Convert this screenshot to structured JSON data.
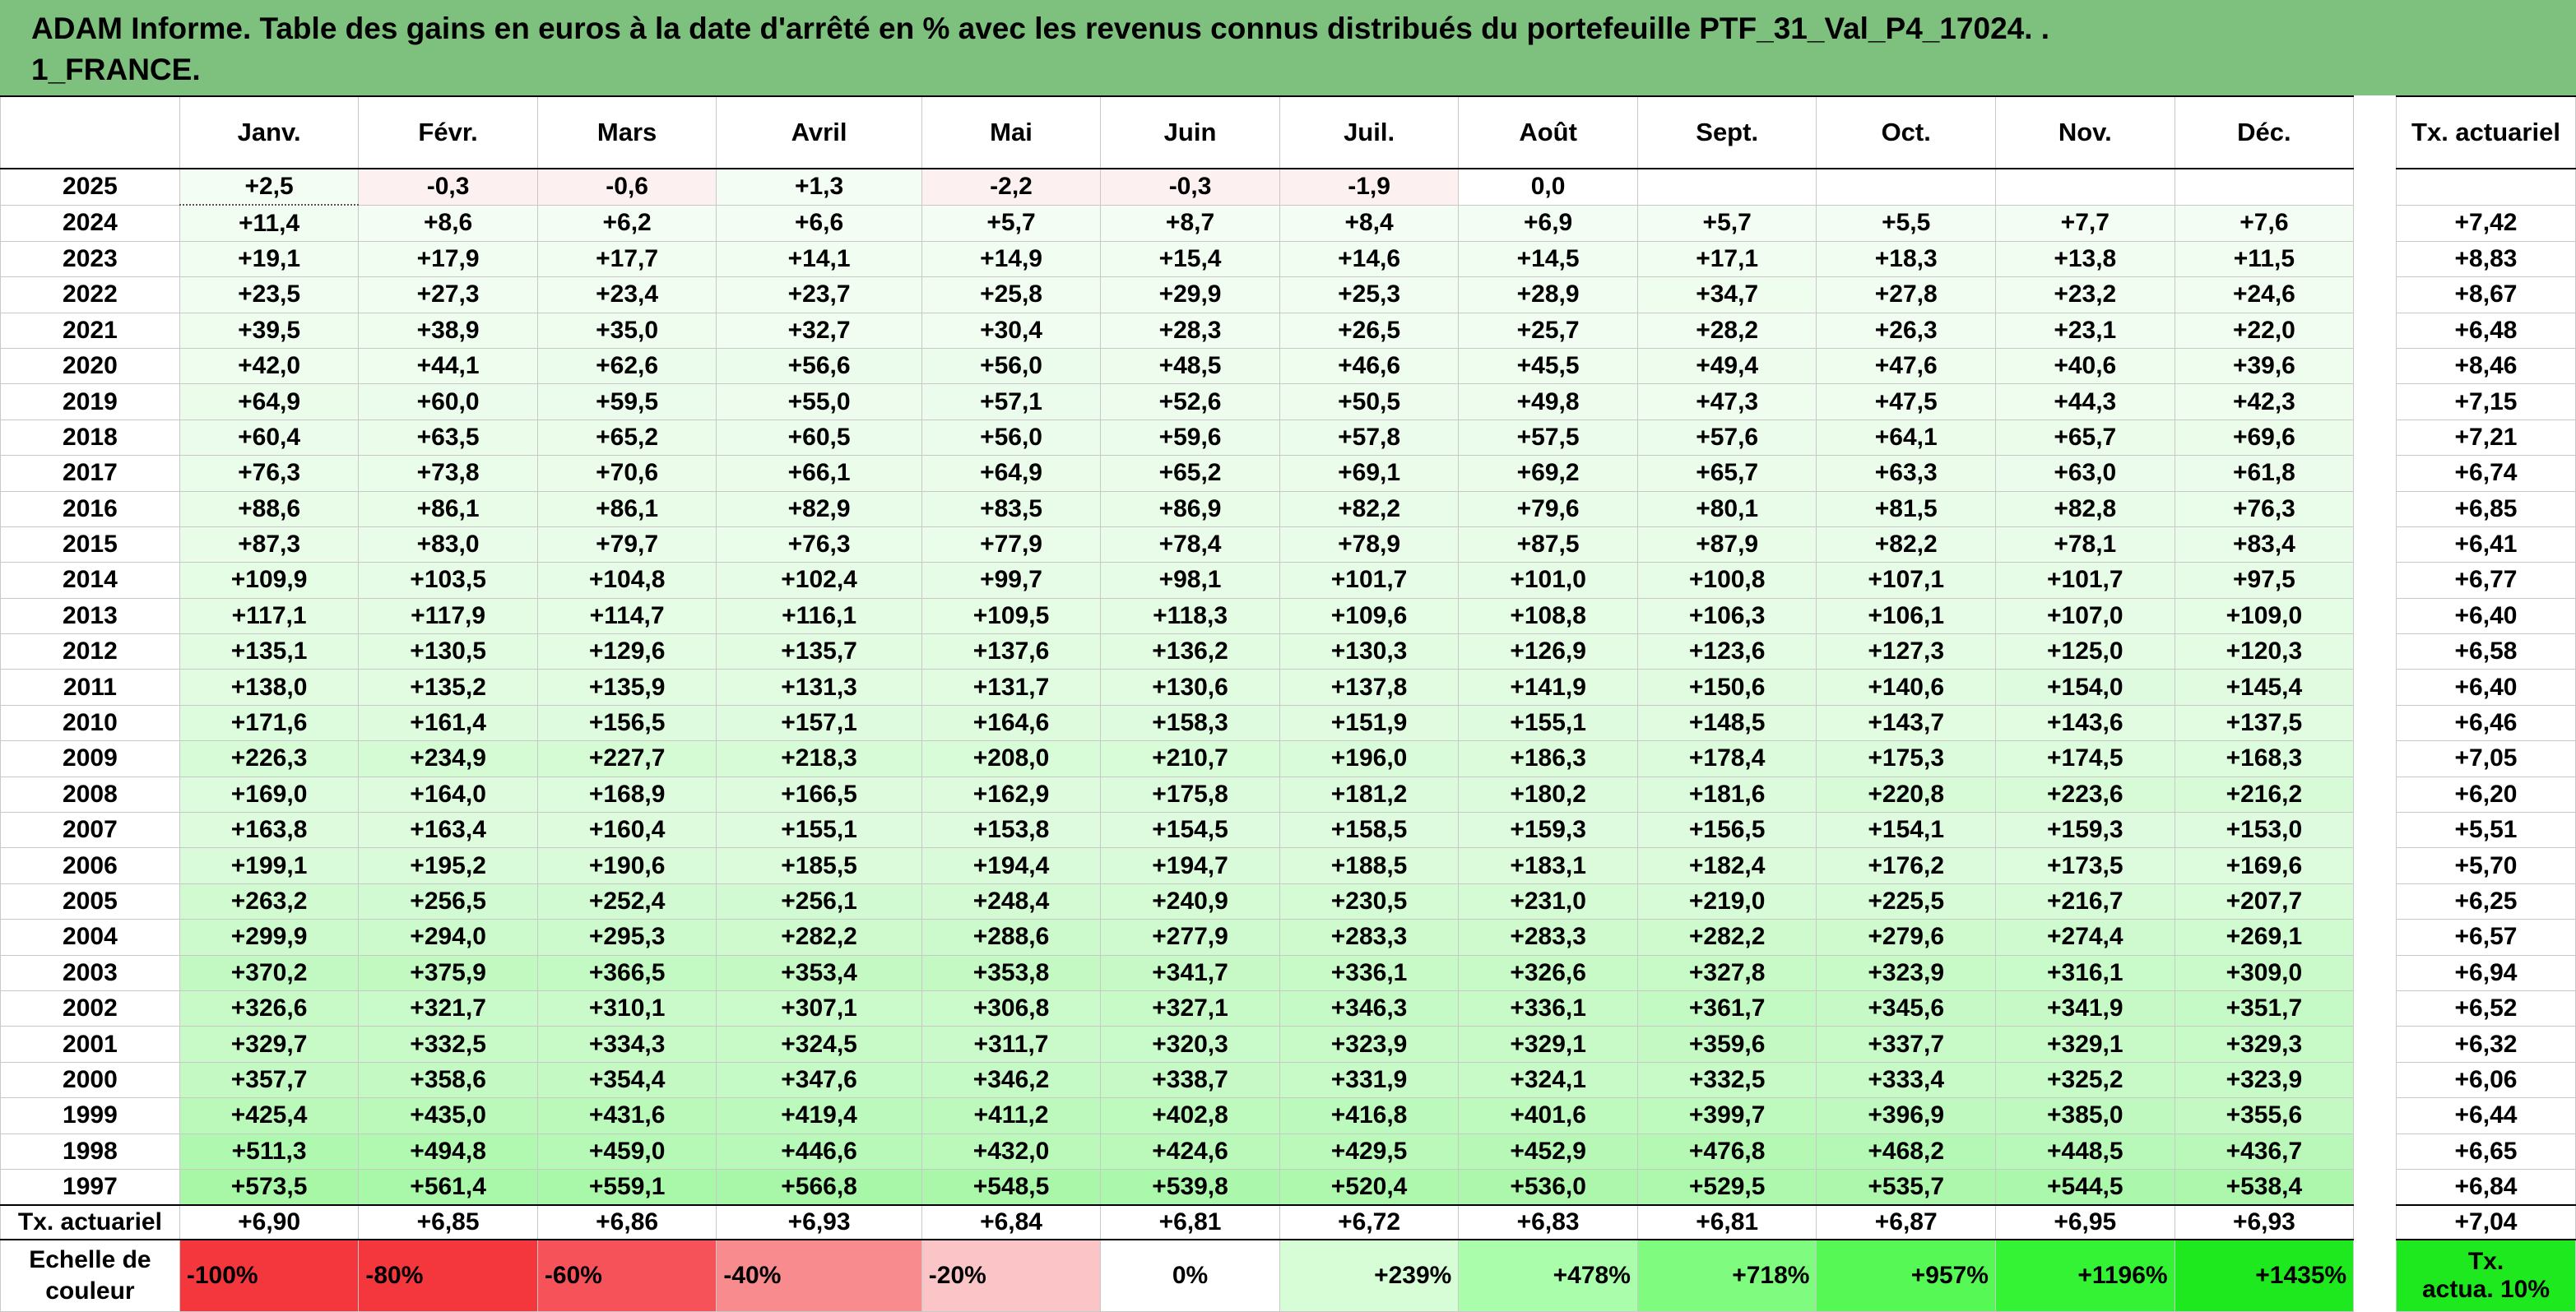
{
  "title": "ADAM Informe. Table des gains en euros à la date d'arrêté en % avec les revenus connus distribués du portefeuille PTF_31_Val_P4_17024. . 1_FRANCE.",
  "title_line1": "ADAM Informe. Table des gains en euros à la date d'arrêté en % avec les revenus connus distribués du portefeuille PTF_31_Val_P4_17024. .",
  "title_line2": "1_FRANCE.",
  "months": [
    "Janv.",
    "Févr.",
    "Mars",
    "Avril",
    "Mai",
    "Juin",
    "Juil.",
    "Août",
    "Sept.",
    "Oct.",
    "Nov.",
    "Déc."
  ],
  "annual_header": "Tx. actuariel",
  "rows": [
    {
      "year": "2025",
      "values": [
        "+2,5",
        "-0,3",
        "-0,6",
        "+1,3",
        "-2,2",
        "-0,3",
        "-1,9",
        "0,0",
        "",
        "",
        "",
        ""
      ],
      "annual": ""
    },
    {
      "year": "2024",
      "values": [
        "+11,4",
        "+8,6",
        "+6,2",
        "+6,6",
        "+5,7",
        "+8,7",
        "+8,4",
        "+6,9",
        "+5,7",
        "+5,5",
        "+7,7",
        "+7,6"
      ],
      "annual": "+7,42"
    },
    {
      "year": "2023",
      "values": [
        "+19,1",
        "+17,9",
        "+17,7",
        "+14,1",
        "+14,9",
        "+15,4",
        "+14,6",
        "+14,5",
        "+17,1",
        "+18,3",
        "+13,8",
        "+11,5"
      ],
      "annual": "+8,83"
    },
    {
      "year": "2022",
      "values": [
        "+23,5",
        "+27,3",
        "+23,4",
        "+23,7",
        "+25,8",
        "+29,9",
        "+25,3",
        "+28,9",
        "+34,7",
        "+27,8",
        "+23,2",
        "+24,6"
      ],
      "annual": "+8,67"
    },
    {
      "year": "2021",
      "values": [
        "+39,5",
        "+38,9",
        "+35,0",
        "+32,7",
        "+30,4",
        "+28,3",
        "+26,5",
        "+25,7",
        "+28,2",
        "+26,3",
        "+23,1",
        "+22,0"
      ],
      "annual": "+6,48"
    },
    {
      "year": "2020",
      "values": [
        "+42,0",
        "+44,1",
        "+62,6",
        "+56,6",
        "+56,0",
        "+48,5",
        "+46,6",
        "+45,5",
        "+49,4",
        "+47,6",
        "+40,6",
        "+39,6"
      ],
      "annual": "+8,46"
    },
    {
      "year": "2019",
      "values": [
        "+64,9",
        "+60,0",
        "+59,5",
        "+55,0",
        "+57,1",
        "+52,6",
        "+50,5",
        "+49,8",
        "+47,3",
        "+47,5",
        "+44,3",
        "+42,3"
      ],
      "annual": "+7,15"
    },
    {
      "year": "2018",
      "values": [
        "+60,4",
        "+63,5",
        "+65,2",
        "+60,5",
        "+56,0",
        "+59,6",
        "+57,8",
        "+57,5",
        "+57,6",
        "+64,1",
        "+65,7",
        "+69,6"
      ],
      "annual": "+7,21"
    },
    {
      "year": "2017",
      "values": [
        "+76,3",
        "+73,8",
        "+70,6",
        "+66,1",
        "+64,9",
        "+65,2",
        "+69,1",
        "+69,2",
        "+65,7",
        "+63,3",
        "+63,0",
        "+61,8"
      ],
      "annual": "+6,74"
    },
    {
      "year": "2016",
      "values": [
        "+88,6",
        "+86,1",
        "+86,1",
        "+82,9",
        "+83,5",
        "+86,9",
        "+82,2",
        "+79,6",
        "+80,1",
        "+81,5",
        "+82,8",
        "+76,3"
      ],
      "annual": "+6,85"
    },
    {
      "year": "2015",
      "values": [
        "+87,3",
        "+83,0",
        "+79,7",
        "+76,3",
        "+77,9",
        "+78,4",
        "+78,9",
        "+87,5",
        "+87,9",
        "+82,2",
        "+78,1",
        "+83,4"
      ],
      "annual": "+6,41"
    },
    {
      "year": "2014",
      "values": [
        "+109,9",
        "+103,5",
        "+104,8",
        "+102,4",
        "+99,7",
        "+98,1",
        "+101,7",
        "+101,0",
        "+100,8",
        "+107,1",
        "+101,7",
        "+97,5"
      ],
      "annual": "+6,77"
    },
    {
      "year": "2013",
      "values": [
        "+117,1",
        "+117,9",
        "+114,7",
        "+116,1",
        "+109,5",
        "+118,3",
        "+109,6",
        "+108,8",
        "+106,3",
        "+106,1",
        "+107,0",
        "+109,0"
      ],
      "annual": "+6,40"
    },
    {
      "year": "2012",
      "values": [
        "+135,1",
        "+130,5",
        "+129,6",
        "+135,7",
        "+137,6",
        "+136,2",
        "+130,3",
        "+126,9",
        "+123,6",
        "+127,3",
        "+125,0",
        "+120,3"
      ],
      "annual": "+6,58"
    },
    {
      "year": "2011",
      "values": [
        "+138,0",
        "+135,2",
        "+135,9",
        "+131,3",
        "+131,7",
        "+130,6",
        "+137,8",
        "+141,9",
        "+150,6",
        "+140,6",
        "+154,0",
        "+145,4"
      ],
      "annual": "+6,40"
    },
    {
      "year": "2010",
      "values": [
        "+171,6",
        "+161,4",
        "+156,5",
        "+157,1",
        "+164,6",
        "+158,3",
        "+151,9",
        "+155,1",
        "+148,5",
        "+143,7",
        "+143,6",
        "+137,5"
      ],
      "annual": "+6,46"
    },
    {
      "year": "2009",
      "values": [
        "+226,3",
        "+234,9",
        "+227,7",
        "+218,3",
        "+208,0",
        "+210,7",
        "+196,0",
        "+186,3",
        "+178,4",
        "+175,3",
        "+174,5",
        "+168,3"
      ],
      "annual": "+7,05"
    },
    {
      "year": "2008",
      "values": [
        "+169,0",
        "+164,0",
        "+168,9",
        "+166,5",
        "+162,9",
        "+175,8",
        "+181,2",
        "+180,2",
        "+181,6",
        "+220,8",
        "+223,6",
        "+216,2"
      ],
      "annual": "+6,20"
    },
    {
      "year": "2007",
      "values": [
        "+163,8",
        "+163,4",
        "+160,4",
        "+155,1",
        "+153,8",
        "+154,5",
        "+158,5",
        "+159,3",
        "+156,5",
        "+154,1",
        "+159,3",
        "+153,0"
      ],
      "annual": "+5,51"
    },
    {
      "year": "2006",
      "values": [
        "+199,1",
        "+195,2",
        "+190,6",
        "+185,5",
        "+194,4",
        "+194,7",
        "+188,5",
        "+183,1",
        "+182,4",
        "+176,2",
        "+173,5",
        "+169,6"
      ],
      "annual": "+5,70"
    },
    {
      "year": "2005",
      "values": [
        "+263,2",
        "+256,5",
        "+252,4",
        "+256,1",
        "+248,4",
        "+240,9",
        "+230,5",
        "+231,0",
        "+219,0",
        "+225,5",
        "+216,7",
        "+207,7"
      ],
      "annual": "+6,25"
    },
    {
      "year": "2004",
      "values": [
        "+299,9",
        "+294,0",
        "+295,3",
        "+282,2",
        "+288,6",
        "+277,9",
        "+283,3",
        "+283,3",
        "+282,2",
        "+279,6",
        "+274,4",
        "+269,1"
      ],
      "annual": "+6,57"
    },
    {
      "year": "2003",
      "values": [
        "+370,2",
        "+375,9",
        "+366,5",
        "+353,4",
        "+353,8",
        "+341,7",
        "+336,1",
        "+326,6",
        "+327,8",
        "+323,9",
        "+316,1",
        "+309,0"
      ],
      "annual": "+6,94"
    },
    {
      "year": "2002",
      "values": [
        "+326,6",
        "+321,7",
        "+310,1",
        "+307,1",
        "+306,8",
        "+327,1",
        "+346,3",
        "+336,1",
        "+361,7",
        "+345,6",
        "+341,9",
        "+351,7"
      ],
      "annual": "+6,52"
    },
    {
      "year": "2001",
      "values": [
        "+329,7",
        "+332,5",
        "+334,3",
        "+324,5",
        "+311,7",
        "+320,3",
        "+323,9",
        "+329,1",
        "+359,6",
        "+337,7",
        "+329,1",
        "+329,3"
      ],
      "annual": "+6,32"
    },
    {
      "year": "2000",
      "values": [
        "+357,7",
        "+358,6",
        "+354,4",
        "+347,6",
        "+346,2",
        "+338,7",
        "+331,9",
        "+324,1",
        "+332,5",
        "+333,4",
        "+325,2",
        "+323,9"
      ],
      "annual": "+6,06"
    },
    {
      "year": "1999",
      "values": [
        "+425,4",
        "+435,0",
        "+431,6",
        "+419,4",
        "+411,2",
        "+402,8",
        "+416,8",
        "+401,6",
        "+399,7",
        "+396,9",
        "+385,0",
        "+355,6"
      ],
      "annual": "+6,44"
    },
    {
      "year": "1998",
      "values": [
        "+511,3",
        "+494,8",
        "+459,0",
        "+446,6",
        "+432,0",
        "+424,6",
        "+429,5",
        "+452,9",
        "+476,8",
        "+468,2",
        "+448,5",
        "+436,7"
      ],
      "annual": "+6,65"
    },
    {
      "year": "1997",
      "values": [
        "+573,5",
        "+561,4",
        "+559,1",
        "+566,8",
        "+548,5",
        "+539,8",
        "+520,4",
        "+536,0",
        "+529,5",
        "+535,7",
        "+544,5",
        "+538,4"
      ],
      "annual": "+6,84"
    }
  ],
  "tx_row": {
    "label": "Tx. actuariel",
    "values": [
      "+6,90",
      "+6,85",
      "+6,86",
      "+6,93",
      "+6,84",
      "+6,81",
      "+6,72",
      "+6,83",
      "+6,81",
      "+6,87",
      "+6,95",
      "+6,93"
    ],
    "overall": "+7,04"
  },
  "scale": {
    "label_line1": "Echelle de",
    "label_line2": "couleur",
    "items": [
      {
        "label": "-100%",
        "color": "#f4373d"
      },
      {
        "label": "-80%",
        "color": "#f4373d"
      },
      {
        "label": "-60%",
        "color": "#f55259"
      },
      {
        "label": "-40%",
        "color": "#f88b8e"
      },
      {
        "label": "-20%",
        "color": "#fbc4c6"
      },
      {
        "label": "0%",
        "color": "#ffffff"
      },
      {
        "label": "+239%",
        "color": "#d6fdd6"
      },
      {
        "label": "+478%",
        "color": "#aafdab"
      },
      {
        "label": "+718%",
        "color": "#7ffb7f"
      },
      {
        "label": "+957%",
        "color": "#55f855"
      },
      {
        "label": "+1196%",
        "color": "#34f334"
      },
      {
        "label": "+1435%",
        "color": "#1ee91e"
      }
    ],
    "annual_legend_line1": "Tx.",
    "annual_legend_line2": "actua. 10%",
    "annual_legend_color": "#1ee91e"
  },
  "colors": {
    "title_bg": "#7ec17e",
    "neg_cell": "#fdf0f0",
    "pos_base": "#f4fdf4",
    "pos_max": "#a6f7a6"
  }
}
